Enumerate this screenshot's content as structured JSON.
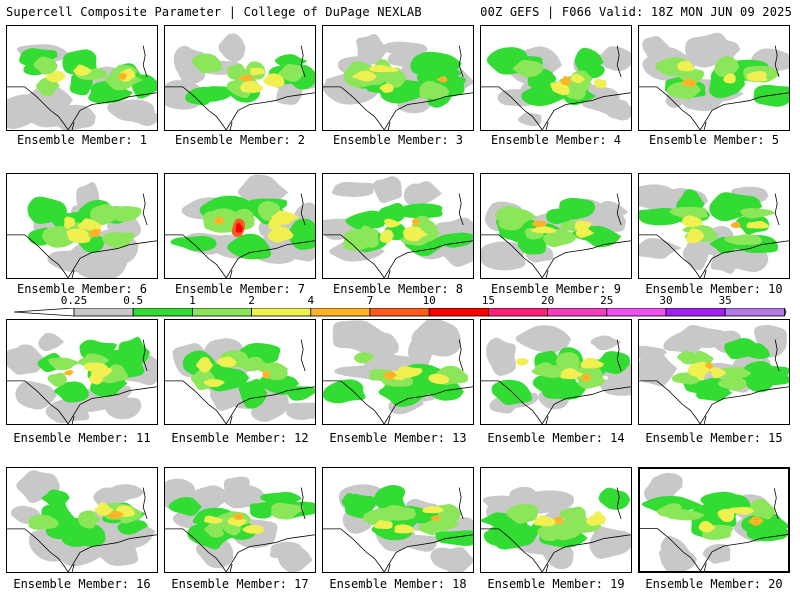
{
  "header": {
    "title_left": "Supercell Composite Parameter | College of DuPage NEXLAB",
    "title_right": "00Z GEFS | F066 Valid: 18Z MON JUN 09 2025"
  },
  "panel_label_prefix": "Ensemble Member: ",
  "members": [
    {
      "number": "1"
    },
    {
      "number": "2"
    },
    {
      "number": "3"
    },
    {
      "number": "4"
    },
    {
      "number": "5"
    },
    {
      "number": "6"
    },
    {
      "number": "7"
    },
    {
      "number": "8"
    },
    {
      "number": "9"
    },
    {
      "number": "10"
    },
    {
      "number": "11"
    },
    {
      "number": "12"
    },
    {
      "number": "13"
    },
    {
      "number": "14"
    },
    {
      "number": "15"
    },
    {
      "number": "16"
    },
    {
      "number": "17"
    },
    {
      "number": "18"
    },
    {
      "number": "19"
    },
    {
      "number": "20",
      "selected": true
    }
  ],
  "legend": {
    "ticks": [
      "0.25",
      "0.5",
      "1",
      "2",
      "4",
      "7",
      "10",
      "15",
      "20",
      "25",
      "30",
      "35"
    ],
    "colors": [
      "#c8c8c8",
      "#32dc32",
      "#8ce65a",
      "#f0f050",
      "#ffb428",
      "#ff5a1e",
      "#ff0000",
      "#ff1e78",
      "#f53cbe",
      "#f050f0",
      "#a020f0",
      "#b478e6",
      "#3cf0f0"
    ],
    "scale_colors": [
      "#ffffff",
      "#c8c8c8",
      "#32dc32",
      "#8ce65a",
      "#f0f050",
      "#ffb428",
      "#ff5a1e",
      "#ff0000",
      "#ff1e78",
      "#f53cbe",
      "#f050f0",
      "#a020f0",
      "#b478e6",
      "#3cf0f0"
    ]
  }
}
